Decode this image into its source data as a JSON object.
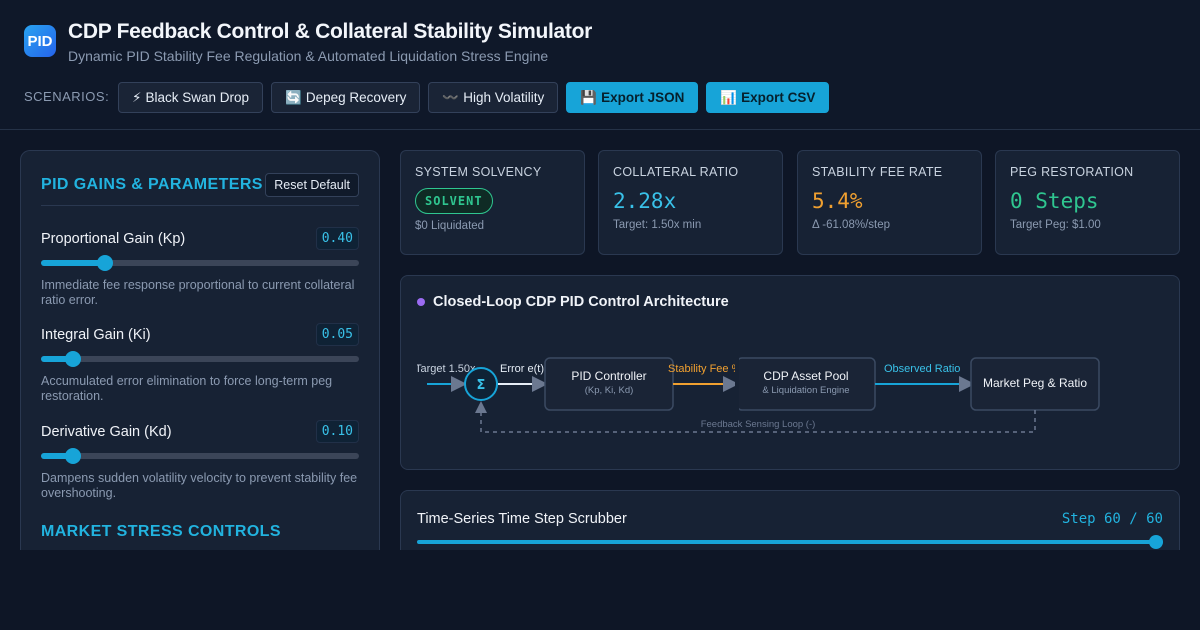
{
  "header": {
    "logo_text": "PID",
    "title": "CDP Feedback Control & Collateral Stability Simulator",
    "subtitle": "Dynamic PID Stability Fee Regulation & Automated Liquidation Stress Engine",
    "scenarios_label": "SCENARIOS:",
    "buttons": [
      {
        "icon": "⚡",
        "label": "Black Swan Drop"
      },
      {
        "icon": "🔄",
        "label": "Depeg Recovery"
      },
      {
        "icon": "〰️",
        "label": "High Volatility"
      },
      {
        "icon": "💾",
        "label": "Export JSON"
      },
      {
        "icon": "📊",
        "label": "Export CSV"
      }
    ]
  },
  "params": {
    "section_title": "PID GAINS & PARAMETERS",
    "reset_label": "Reset Default",
    "kp": {
      "label": "Proportional Gain (Kp)",
      "value": "0.40",
      "fraction": 0.2,
      "desc": "Immediate fee response proportional to current collateral ratio error."
    },
    "ki": {
      "label": "Integral Gain (Ki)",
      "value": "0.05",
      "fraction": 0.1,
      "desc": "Accumulated error elimination to force long-term peg restoration."
    },
    "kd": {
      "label": "Derivative Gain (Kd)",
      "value": "0.10",
      "fraction": 0.1,
      "desc": "Dampens sudden volatility velocity to prevent stability fee overshooting."
    },
    "section2_title": "MARKET STRESS CONTROLS"
  },
  "cards": {
    "solvency": {
      "label": "SYSTEM SOLVENCY",
      "badge": "SOLVENT",
      "sub": "$0 Liquidated"
    },
    "ratio": {
      "label": "COLLATERAL RATIO",
      "value": "2.28x",
      "sub": "Target: 1.50x min"
    },
    "fee": {
      "label": "STABILITY FEE RATE",
      "value": "5.4%",
      "sub": "Δ -61.08%/step"
    },
    "peg": {
      "label": "PEG RESTORATION",
      "value": "0 Steps",
      "sub": "Target Peg: $1.00"
    }
  },
  "diagram": {
    "title": "Closed-Loop CDP PID Control Architecture",
    "target_label": "Target 1.50x",
    "sum_symbol": "Σ",
    "error_label": "Error e(t)",
    "pid_title": "PID Controller",
    "pid_sub": "(Kp, Ki, Kd)",
    "fee_label": "Stability Fee %",
    "pool_title": "CDP Asset Pool",
    "pool_sub": "& Liquidation Engine",
    "observed_label": "Observed Ratio",
    "market_title": "Market Peg & Ratio",
    "feedback_label": "Feedback Sensing Loop (-)"
  },
  "scrubber": {
    "title": "Time-Series Time Step Scrubber",
    "step_text": "Step 60 / 60",
    "fraction": 1.0
  },
  "colors": {
    "accent": "#17a4d8",
    "solvent": "#2fc690",
    "fee": "#f0a030",
    "ratio": "#39c1e8",
    "peg": "#2fc690",
    "dot": "#9b6bf2"
  }
}
